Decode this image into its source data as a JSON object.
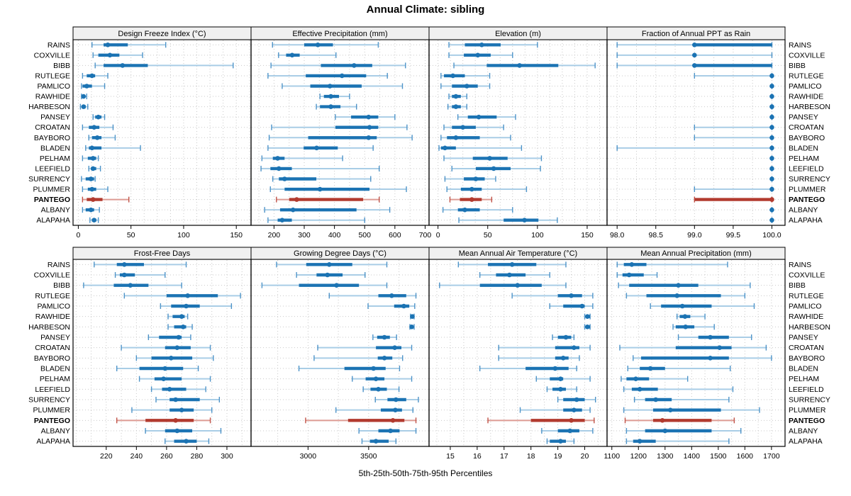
{
  "title": "Annual Climate: sibling",
  "caption": "5th-25th-50th-75th-95th Percentiles",
  "percentiles": [
    "5th",
    "25th",
    "50th",
    "75th",
    "95th"
  ],
  "stations": [
    "RAINS",
    "COXVILLE",
    "BIBB",
    "RUTLEGE",
    "PAMLICO",
    "RAWHIDE",
    "HARBESON",
    "PANSEY",
    "CROATAN",
    "BAYBORO",
    "BLADEN",
    "PELHAM",
    "LEEFIELD",
    "SURRENCY",
    "PLUMMER",
    "PANTEGO",
    "ALBANY",
    "ALAPAHA"
  ],
  "highlight_station": "PANTEGO",
  "colors": {
    "blue_dark": "#1b73b3",
    "blue_mid": "#4d93c8",
    "blue_light": "#a9cde6",
    "red_dark": "#b23a2e",
    "red_mid": "#c05247",
    "red_light": "#dd9b93",
    "header_bg": "#f0f0f0",
    "grid": "#c9c9c9",
    "border": "#000000"
  },
  "chart_data": [
    {
      "type": "dotplot-interval",
      "title": "Design Freeze Index (°C)",
      "xlim": [
        -5,
        164
      ],
      "ticks": [
        0,
        50,
        100,
        150
      ],
      "grid_step": 12.5,
      "tick_decimals": 0,
      "values": [
        [
          13,
          24,
          28,
          47,
          83
        ],
        [
          14,
          19,
          30,
          39,
          61
        ],
        [
          16,
          24,
          42,
          66,
          147
        ],
        [
          4,
          8,
          13,
          16,
          28
        ],
        [
          3,
          4,
          8,
          13,
          25
        ],
        [
          3,
          4,
          5,
          6,
          8
        ],
        [
          2,
          4,
          5,
          7,
          9
        ],
        [
          14,
          16,
          19,
          22,
          25
        ],
        [
          4,
          10,
          15,
          20,
          33
        ],
        [
          10,
          13,
          18,
          22,
          35
        ],
        [
          7,
          10,
          13,
          22,
          59
        ],
        [
          4,
          9,
          14,
          17,
          19
        ],
        [
          10,
          12,
          14,
          17,
          21
        ],
        [
          3,
          7,
          12,
          15,
          16
        ],
        [
          4,
          9,
          13,
          17,
          28
        ],
        [
          4,
          8,
          14,
          23,
          48
        ],
        [
          4,
          7,
          12,
          15,
          20
        ],
        [
          11,
          13,
          15,
          17,
          19
        ]
      ]
    },
    {
      "type": "dotplot-interval",
      "title": "Effective Precipitation (mm)",
      "xlim": [
        124,
        713
      ],
      "ticks": [
        200,
        300,
        400,
        500,
        600,
        700
      ],
      "grid_step": 50,
      "tick_decimals": 0,
      "values": [
        [
          195,
          300,
          345,
          395,
          545
        ],
        [
          215,
          240,
          260,
          285,
          405
        ],
        [
          190,
          355,
          465,
          525,
          635
        ],
        [
          180,
          305,
          425,
          505,
          575
        ],
        [
          227,
          320,
          385,
          490,
          625
        ],
        [
          352,
          365,
          388,
          415,
          450
        ],
        [
          340,
          352,
          388,
          420,
          473
        ],
        [
          403,
          455,
          513,
          545,
          600
        ],
        [
          192,
          403,
          516,
          545,
          640
        ],
        [
          184,
          313,
          513,
          540,
          657
        ],
        [
          180,
          298,
          341,
          411,
          528
        ],
        [
          160,
          196,
          212,
          235,
          427
        ],
        [
          157,
          188,
          216,
          259,
          548
        ],
        [
          196,
          216,
          235,
          340,
          520
        ],
        [
          188,
          235,
          352,
          516,
          638
        ],
        [
          208,
          250,
          275,
          495,
          548
        ],
        [
          169,
          220,
          263,
          473,
          583
        ],
        [
          180,
          212,
          227,
          259,
          500
        ]
      ]
    },
    {
      "type": "dotplot-interval",
      "title": "Elevation (m)",
      "xlim": [
        -9,
        170
      ],
      "ticks": [
        0,
        50,
        100,
        150
      ],
      "grid_step": 12.5,
      "tick_decimals": 0,
      "values": [
        [
          11,
          27,
          44,
          63,
          100
        ],
        [
          11,
          26,
          40,
          53,
          75
        ],
        [
          16,
          49,
          82,
          121,
          158
        ],
        [
          3,
          6,
          15,
          27,
          52
        ],
        [
          3,
          14,
          29,
          40,
          52
        ],
        [
          11,
          14,
          18,
          23,
          29
        ],
        [
          10,
          14,
          18,
          23,
          29
        ],
        [
          20,
          30,
          41,
          59,
          78
        ],
        [
          6,
          14,
          25,
          38,
          66
        ],
        [
          3,
          9,
          18,
          42,
          73
        ],
        [
          1,
          3,
          7,
          18,
          84
        ],
        [
          6,
          35,
          52,
          70,
          104
        ],
        [
          14,
          38,
          56,
          73,
          103
        ],
        [
          7,
          26,
          38,
          47,
          58
        ],
        [
          9,
          23,
          34,
          44,
          89
        ],
        [
          12,
          22,
          34,
          44,
          54
        ],
        [
          5,
          20,
          27,
          42,
          75
        ],
        [
          21,
          66,
          87,
          101,
          120
        ]
      ]
    },
    {
      "type": "dotplot-interval",
      "title": "Fraction of Annual PPT as Rain",
      "xlim": [
        97.87,
        100.17
      ],
      "ticks": [
        98.0,
        98.5,
        99.0,
        99.5,
        100.0
      ],
      "grid_step": 0.25,
      "tick_decimals": 1,
      "values": [
        [
          98,
          99,
          99,
          100,
          100
        ],
        [
          98,
          99,
          99,
          99,
          100
        ],
        [
          98,
          99,
          99,
          100,
          100
        ],
        [
          99,
          100,
          100,
          100,
          100
        ],
        [
          100,
          100,
          100,
          100,
          100
        ],
        [
          100,
          100,
          100,
          100,
          100
        ],
        [
          100,
          100,
          100,
          100,
          100
        ],
        [
          100,
          100,
          100,
          100,
          100
        ],
        [
          99,
          100,
          100,
          100,
          100
        ],
        [
          99,
          100,
          100,
          100,
          100
        ],
        [
          98,
          100,
          100,
          100,
          100
        ],
        [
          100,
          100,
          100,
          100,
          100
        ],
        [
          100,
          100,
          100,
          100,
          100
        ],
        [
          100,
          100,
          100,
          100,
          100
        ],
        [
          99,
          100,
          100,
          100,
          100
        ],
        [
          99,
          99,
          100,
          100,
          100
        ],
        [
          100,
          100,
          100,
          100,
          100
        ],
        [
          100,
          100,
          100,
          100,
          100
        ]
      ]
    },
    {
      "type": "dotplot-interval",
      "title": "Frost-Free Days",
      "xlim": [
        198,
        316
      ],
      "ticks": [
        220,
        240,
        260,
        280,
        300
      ],
      "grid_step": 10,
      "tick_decimals": 0,
      "values": [
        [
          212,
          227,
          232,
          245,
          273
        ],
        [
          226,
          229,
          232,
          239,
          259
        ],
        [
          205,
          225,
          236,
          248,
          270
        ],
        [
          232,
          260,
          274,
          294,
          309
        ],
        [
          256,
          263,
          273,
          282,
          303
        ],
        [
          261,
          264,
          270,
          272,
          274
        ],
        [
          261,
          265,
          271,
          273,
          277
        ],
        [
          248,
          255,
          268,
          270,
          276
        ],
        [
          230,
          259,
          267,
          276,
          289
        ],
        [
          240,
          250,
          263,
          277,
          291
        ],
        [
          227,
          242,
          259,
          271,
          281
        ],
        [
          242,
          252,
          258,
          270,
          289
        ],
        [
          250,
          257,
          262,
          273,
          286
        ],
        [
          253,
          262,
          266,
          282,
          295
        ],
        [
          237,
          262,
          270,
          278,
          290
        ],
        [
          227,
          246,
          266,
          278,
          289
        ],
        [
          246,
          259,
          267,
          277,
          296
        ],
        [
          259,
          265,
          273,
          280,
          288
        ]
      ]
    },
    {
      "type": "dotplot-interval",
      "title": "Growing Degree Days (°C)",
      "xlim": [
        2530,
        3998
      ],
      "ticks": [
        3000,
        3500
      ],
      "grid_step": 250,
      "tick_decimals": 0,
      "values": [
        [
          2740,
          2985,
          3175,
          3365,
          3650
        ],
        [
          2905,
          3070,
          3160,
          3285,
          3470
        ],
        [
          2620,
          2925,
          3235,
          3420,
          3650
        ],
        [
          3175,
          3580,
          3690,
          3810,
          3890
        ],
        [
          3495,
          3710,
          3790,
          3835,
          3880
        ],
        [
          3845,
          3855,
          3860,
          3865,
          3875
        ],
        [
          3840,
          3850,
          3855,
          3865,
          3875
        ],
        [
          3535,
          3570,
          3630,
          3675,
          3730
        ],
        [
          3080,
          3560,
          3715,
          3770,
          3855
        ],
        [
          3050,
          3575,
          3630,
          3695,
          3780
        ],
        [
          2925,
          3300,
          3540,
          3640,
          3755
        ],
        [
          3365,
          3475,
          3560,
          3630,
          3855
        ],
        [
          3455,
          3515,
          3580,
          3650,
          3750
        ],
        [
          3555,
          3655,
          3725,
          3810,
          3910
        ],
        [
          3230,
          3600,
          3720,
          3775,
          3865
        ],
        [
          2980,
          3330,
          3700,
          3795,
          3890
        ],
        [
          3420,
          3580,
          3680,
          3755,
          3890
        ],
        [
          3445,
          3510,
          3560,
          3665,
          3725
        ]
      ]
    },
    {
      "type": "dotplot-interval",
      "title": "Mean Annual Air Temperature (°C)",
      "xlim": [
        14.21,
        20.83
      ],
      "ticks": [
        15,
        16,
        17,
        18,
        19,
        20
      ],
      "grid_step": 0.5,
      "tick_decimals": 0,
      "values": [
        [
          15.3,
          16.4,
          17.3,
          18.2,
          19.3
        ],
        [
          16.1,
          16.7,
          17.2,
          17.8,
          18.7
        ],
        [
          14.6,
          16.1,
          17.5,
          18.4,
          19.3
        ],
        [
          17.3,
          19.0,
          19.5,
          19.9,
          20.3
        ],
        [
          18.7,
          19.2,
          19.9,
          20.0,
          20.3
        ],
        [
          20.0,
          20.1,
          20.1,
          20.2,
          20.2
        ],
        [
          20.0,
          20.1,
          20.1,
          20.2,
          20.2
        ],
        [
          18.8,
          19.0,
          19.3,
          19.5,
          19.6
        ],
        [
          16.8,
          18.9,
          19.6,
          19.8,
          20.2
        ],
        [
          16.8,
          18.9,
          19.2,
          19.4,
          19.8
        ],
        [
          16.1,
          17.8,
          18.9,
          19.4,
          19.7
        ],
        [
          18.2,
          18.7,
          19.1,
          19.2,
          20.2
        ],
        [
          18.6,
          18.8,
          19.1,
          19.3,
          19.7
        ],
        [
          19.0,
          19.2,
          19.7,
          20.0,
          20.4
        ],
        [
          17.6,
          19.2,
          19.6,
          19.9,
          20.2
        ],
        [
          16.4,
          18.0,
          19.5,
          20.0,
          20.35
        ],
        [
          18.4,
          19.0,
          19.45,
          19.8,
          20.3
        ],
        [
          18.6,
          18.7,
          19.1,
          19.3,
          19.6
        ]
      ]
    },
    {
      "type": "dotplot-interval",
      "title": "Mean Annual Precipitation (mm)",
      "xlim": [
        1082,
        1751
      ],
      "ticks": [
        1100,
        1200,
        1300,
        1400,
        1500,
        1600,
        1700
      ],
      "grid_step": 50,
      "tick_decimals": 0,
      "values": [
        [
          1120,
          1145,
          1175,
          1230,
          1535
        ],
        [
          1120,
          1140,
          1165,
          1220,
          1270
        ],
        [
          1125,
          1165,
          1350,
          1425,
          1620
        ],
        [
          1155,
          1230,
          1345,
          1510,
          1600
        ],
        [
          1245,
          1285,
          1365,
          1475,
          1635
        ],
        [
          1345,
          1355,
          1375,
          1395,
          1450
        ],
        [
          1330,
          1340,
          1377,
          1410,
          1485
        ],
        [
          1350,
          1425,
          1470,
          1540,
          1625
        ],
        [
          1130,
          1340,
          1505,
          1550,
          1680
        ],
        [
          1180,
          1210,
          1470,
          1540,
          1700
        ],
        [
          1160,
          1205,
          1245,
          1300,
          1545
        ],
        [
          1135,
          1155,
          1190,
          1240,
          1385
        ],
        [
          1145,
          1175,
          1205,
          1273,
          1555
        ],
        [
          1185,
          1225,
          1265,
          1325,
          1540
        ],
        [
          1145,
          1255,
          1320,
          1510,
          1655
        ],
        [
          1150,
          1255,
          1290,
          1475,
          1560
        ],
        [
          1155,
          1225,
          1300,
          1475,
          1585
        ],
        [
          1155,
          1180,
          1205,
          1265,
          1540
        ]
      ]
    }
  ]
}
